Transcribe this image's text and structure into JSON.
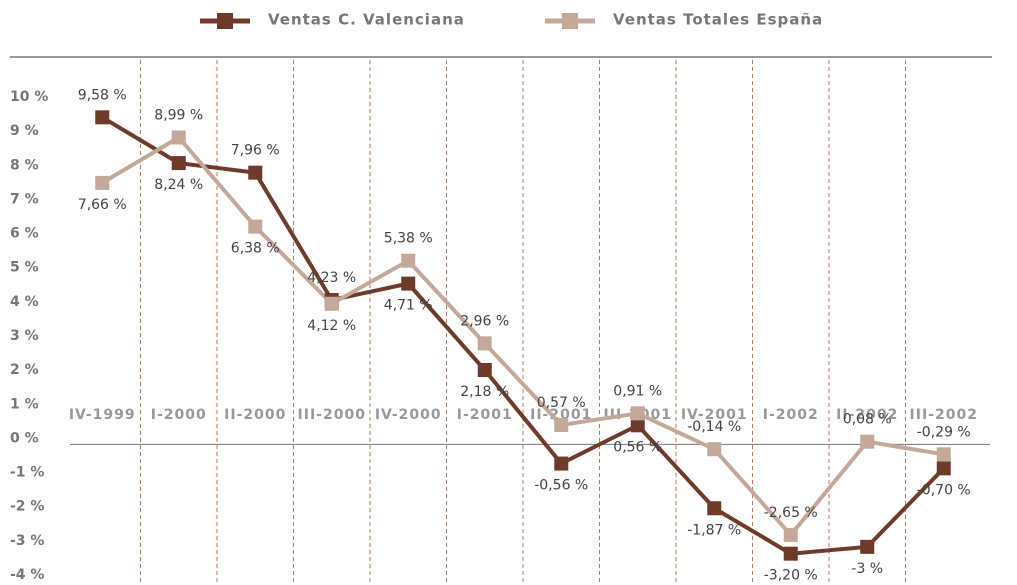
{
  "chart_data": {
    "type": "line",
    "categories": [
      "IV-1999",
      "I-2000",
      "II-2000",
      "III-2000",
      "IV-2000",
      "I-2001",
      "II-2001",
      "III-2001",
      "IV-2001",
      "I-2002",
      "II-2002",
      "III-2002"
    ],
    "series": [
      {
        "name": "Ventas C. Valenciana",
        "color": "#6e3b2b",
        "values": [
          9.58,
          8.24,
          7.96,
          4.23,
          4.71,
          2.18,
          -0.56,
          0.56,
          -1.87,
          -3.2,
          -3,
          -0.7
        ],
        "value_labels": [
          "9,58 %",
          "8,24 %",
          "7,96 %",
          "4,23 %",
          "4,71 %",
          "2,18 %",
          "-0,56 %",
          "0,56 %",
          "-1,87 %",
          "-3,20 %",
          "-3 %",
          "-0,70 %"
        ]
      },
      {
        "name": "Ventas Totales España",
        "color": "#c4a89a",
        "values": [
          7.66,
          8.99,
          6.38,
          4.12,
          5.38,
          2.96,
          0.57,
          0.91,
          -0.14,
          -2.65,
          0.08,
          -0.29
        ],
        "value_labels": [
          "7,66 %",
          "8,99 %",
          "6,38 %",
          "4,12 %",
          "5,38 %",
          "2,96 %",
          "0,57 %",
          "0,91 %",
          "-0,14 %",
          "-2,65 %",
          "0,08 %",
          "-0,29 %"
        ]
      }
    ],
    "ylim": [
      -4,
      10
    ],
    "yticks": [
      {
        "value": 10,
        "label": "10 %"
      },
      {
        "value": 9,
        "label": "9 %"
      },
      {
        "value": 8,
        "label": "8 %"
      },
      {
        "value": 7,
        "label": "7 %"
      },
      {
        "value": 6,
        "label": "6 %"
      },
      {
        "value": 5,
        "label": "5 %"
      },
      {
        "value": 4,
        "label": "4 %"
      },
      {
        "value": 3,
        "label": "3 %"
      },
      {
        "value": 2,
        "label": "2 %"
      },
      {
        "value": 1,
        "label": "1 %"
      },
      {
        "value": 0,
        "label": "0 %"
      },
      {
        "value": -1,
        "label": "-1 %"
      },
      {
        "value": -2,
        "label": "-2 %"
      },
      {
        "value": -3,
        "label": "-3 %"
      },
      {
        "value": -4,
        "label": "-4 %"
      }
    ],
    "legend": "top"
  }
}
